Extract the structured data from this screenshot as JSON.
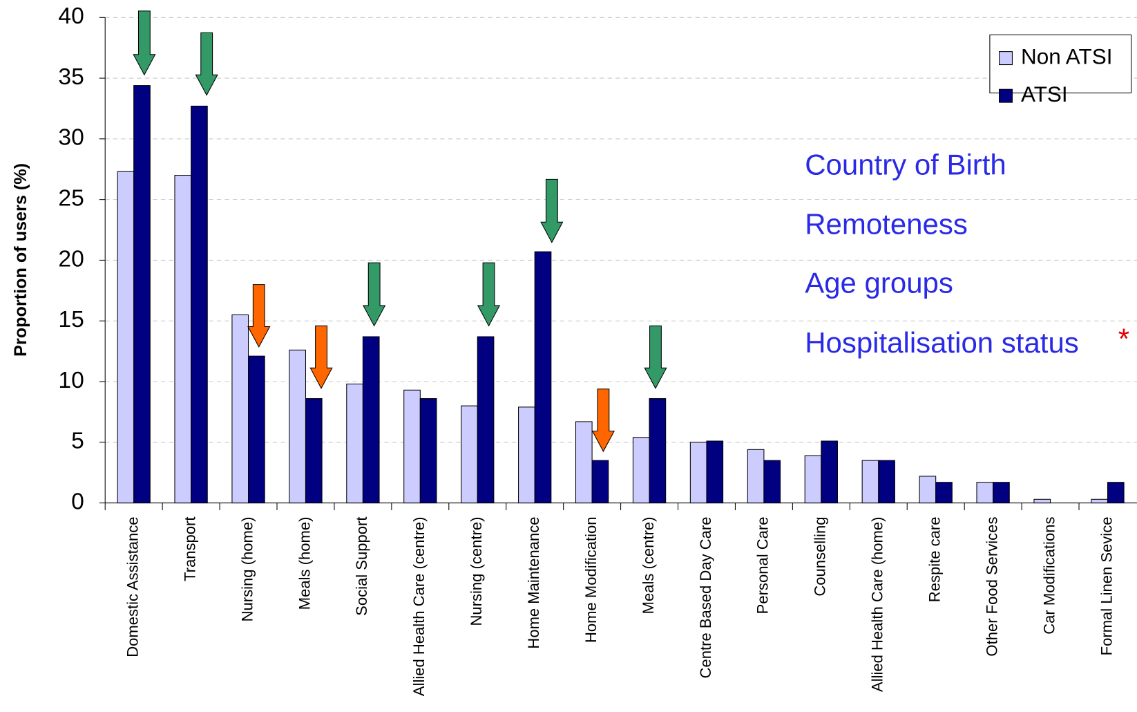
{
  "chart_data": {
    "type": "bar",
    "y_label": "Proportion of users (%)",
    "categories": [
      "Domestic Assistance",
      "Transport",
      "Nursing (home)",
      "Meals (home)",
      "Social Support",
      "Allied Health Care (centre)",
      "Nursing (centre)",
      "Home Maintenance",
      "Home Modification",
      "Meals (centre)",
      "Centre Based Day Care",
      "Personal Care",
      "Counselling",
      "Allied Health Care (home)",
      "Respite care",
      "Other Food Services",
      "Car Modifications",
      "Formal Linen Sevice"
    ],
    "series": [
      {
        "name": "Non ATSI",
        "color": "#ccccff",
        "values": [
          27.3,
          27.0,
          15.5,
          12.6,
          9.8,
          9.3,
          8.0,
          7.9,
          6.7,
          5.4,
          5.0,
          4.4,
          3.9,
          3.5,
          2.2,
          1.7,
          0.3,
          0.3
        ]
      },
      {
        "name": "ATSI",
        "color": "#000080",
        "values": [
          34.4,
          32.7,
          12.1,
          8.6,
          13.7,
          8.6,
          13.7,
          20.7,
          3.5,
          8.6,
          5.1,
          3.5,
          5.1,
          3.5,
          1.7,
          1.7,
          0,
          1.7
        ]
      }
    ],
    "ylim": [
      0,
      40
    ],
    "yticks": [
      0,
      5,
      10,
      15,
      20,
      25,
      30,
      35,
      40
    ],
    "grid": true,
    "legend": "top-right",
    "annotations": [
      "Country of Birth",
      "Remoteness",
      "Age groups",
      "Hospitalisation status",
      "*"
    ]
  }
}
